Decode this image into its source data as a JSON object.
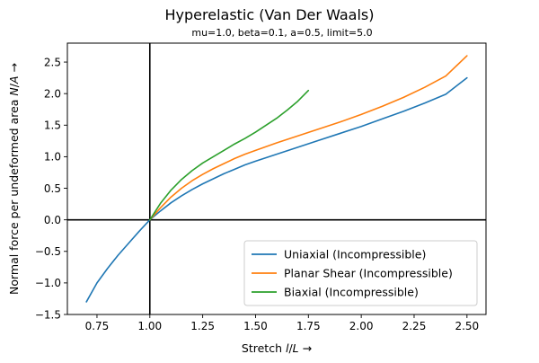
{
  "chart_data": {
    "type": "line",
    "title": "Hyperelastic (Van Der Waals)",
    "subtitle": "mu=1.0, beta=0.1, a=0.5, limit=5.0",
    "xlabel": "Stretch l/L →",
    "ylabel": "Normal force per undeformed area N/A →",
    "xlim": [
      0.61,
      2.59
    ],
    "ylim": [
      -1.5,
      2.8
    ],
    "x_ticks": [
      0.75,
      1.0,
      1.25,
      1.5,
      1.75,
      2.0,
      2.25,
      2.5
    ],
    "x_tick_labels": [
      "0.75",
      "1.00",
      "1.25",
      "1.50",
      "1.75",
      "2.00",
      "2.25",
      "2.50"
    ],
    "y_ticks": [
      -1.5,
      -1.0,
      -0.5,
      0.0,
      0.5,
      1.0,
      1.5,
      2.0,
      2.5
    ],
    "y_tick_labels": [
      "−1.5",
      "−1.0",
      "−0.5",
      "0.0",
      "0.5",
      "1.0",
      "1.5",
      "2.0",
      "2.5"
    ],
    "reference_lines": {
      "x": 1.0,
      "y": 0.0
    },
    "grid": false,
    "legend_position": "lower-right",
    "series": [
      {
        "name": "Uniaxial (Incompressible)",
        "color": "#1f77b4",
        "x": [
          0.7,
          0.75,
          0.8,
          0.85,
          0.9,
          0.95,
          1.0,
          1.05,
          1.1,
          1.15,
          1.2,
          1.25,
          1.3,
          1.35,
          1.4,
          1.45,
          1.5,
          1.6,
          1.7,
          1.8,
          1.9,
          2.0,
          2.1,
          2.2,
          2.3,
          2.4,
          2.5
        ],
        "y": [
          -1.3,
          -1.0,
          -0.77,
          -0.56,
          -0.37,
          -0.18,
          0.0,
          0.14,
          0.27,
          0.38,
          0.48,
          0.57,
          0.65,
          0.73,
          0.8,
          0.87,
          0.93,
          1.04,
          1.15,
          1.26,
          1.37,
          1.48,
          1.6,
          1.72,
          1.85,
          1.99,
          2.25
        ]
      },
      {
        "name": "Planar Shear (Incompressible)",
        "color": "#ff7f0e",
        "x": [
          1.0,
          1.05,
          1.1,
          1.15,
          1.2,
          1.25,
          1.3,
          1.35,
          1.4,
          1.45,
          1.5,
          1.6,
          1.7,
          1.8,
          1.9,
          2.0,
          2.1,
          2.2,
          2.3,
          2.4,
          2.5
        ],
        "y": [
          0.0,
          0.19,
          0.36,
          0.5,
          0.62,
          0.72,
          0.81,
          0.89,
          0.97,
          1.04,
          1.1,
          1.22,
          1.33,
          1.44,
          1.55,
          1.67,
          1.8,
          1.94,
          2.1,
          2.28,
          2.6
        ]
      },
      {
        "name": "Biaxial (Incompressible)",
        "color": "#2ca02c",
        "x": [
          1.0,
          1.05,
          1.1,
          1.15,
          1.2,
          1.25,
          1.3,
          1.35,
          1.4,
          1.45,
          1.5,
          1.55,
          1.6,
          1.65,
          1.7,
          1.75
        ],
        "y": [
          0.0,
          0.26,
          0.47,
          0.64,
          0.78,
          0.9,
          1.0,
          1.1,
          1.2,
          1.29,
          1.39,
          1.5,
          1.61,
          1.74,
          1.88,
          2.05
        ]
      }
    ]
  }
}
